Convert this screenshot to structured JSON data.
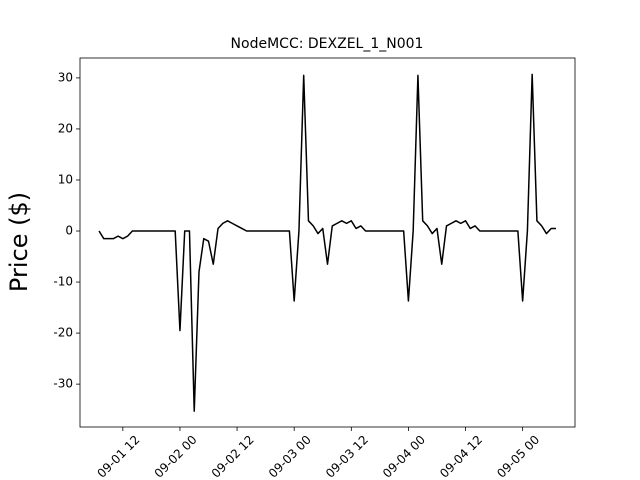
{
  "chart_data": {
    "type": "line",
    "title": "NodeMCC: DEXZEL_1_N001",
    "y_label": "Price ($)",
    "color": "#000000",
    "x": [
      "09-01 07",
      "09-01 08",
      "09-01 09",
      "09-01 10",
      "09-01 11",
      "09-01 12",
      "09-01 13",
      "09-01 14",
      "09-01 15",
      "09-01 16",
      "09-01 17",
      "09-01 18",
      "09-01 19",
      "09-01 20",
      "09-01 21",
      "09-01 22",
      "09-01 23",
      "09-02 00",
      "09-02 01",
      "09-02 02",
      "09-02 03",
      "09-02 04",
      "09-02 05",
      "09-02 06",
      "09-02 07",
      "09-02 08",
      "09-02 09",
      "09-02 10",
      "09-02 11",
      "09-02 12",
      "09-02 13",
      "09-02 14",
      "09-02 15",
      "09-02 16",
      "09-02 17",
      "09-02 18",
      "09-02 19",
      "09-02 20",
      "09-02 21",
      "09-02 22",
      "09-02 23",
      "09-03 00",
      "09-03 01",
      "09-03 02",
      "09-03 03",
      "09-03 04",
      "09-03 05",
      "09-03 06",
      "09-03 07",
      "09-03 08",
      "09-03 09",
      "09-03 10",
      "09-03 11",
      "09-03 12",
      "09-03 13",
      "09-03 14",
      "09-03 15",
      "09-03 16",
      "09-03 17",
      "09-03 18",
      "09-03 19",
      "09-03 20",
      "09-03 21",
      "09-03 22",
      "09-03 23",
      "09-04 00",
      "09-04 01",
      "09-04 02",
      "09-04 03",
      "09-04 04",
      "09-04 05",
      "09-04 06",
      "09-04 07",
      "09-04 08",
      "09-04 09",
      "09-04 10",
      "09-04 11",
      "09-04 12",
      "09-04 13",
      "09-04 14",
      "09-04 15",
      "09-04 16",
      "09-04 17",
      "09-04 18",
      "09-04 19",
      "09-04 20",
      "09-04 21",
      "09-04 22",
      "09-04 23",
      "09-05 00",
      "09-05 01",
      "09-05 02",
      "09-05 03",
      "09-05 04",
      "09-05 05",
      "09-05 06",
      "09-05 07"
    ],
    "values": [
      0,
      -1.5,
      -1.5,
      -1.5,
      -1,
      -1.5,
      -1,
      0,
      0,
      0,
      0,
      0,
      0,
      0,
      0,
      0,
      0,
      -19.5,
      0,
      0,
      -35.3,
      -8,
      -1.5,
      -2,
      -6.5,
      0.5,
      1.5,
      2,
      1.5,
      1,
      0.5,
      0,
      0,
      0,
      0,
      0,
      0,
      0,
      0,
      0,
      0,
      -13.7,
      0,
      30.5,
      2,
      1,
      -0.5,
      0.5,
      -6.5,
      1,
      1.5,
      2,
      1.5,
      2,
      0.5,
      1,
      0,
      0,
      0,
      0,
      0,
      0,
      0,
      0,
      0,
      -13.7,
      0,
      30.5,
      2,
      1,
      -0.5,
      0.5,
      -6.5,
      1,
      1.5,
      2,
      1.5,
      2,
      0.5,
      1,
      0,
      0,
      0,
      0,
      0,
      0,
      0,
      0,
      0,
      -13.7,
      0,
      30.7,
      2,
      1,
      -0.5,
      0.5,
      0.5
    ],
    "xlim": [
      "09-01 03",
      "09-05 11"
    ],
    "xticks": [
      "09-01 12",
      "09-02 00",
      "09-02 12",
      "09-03 00",
      "09-03 12",
      "09-04 00",
      "09-04 12",
      "09-05 00"
    ],
    "ylim": [
      -38.4,
      33.9
    ],
    "yticks": [
      -30,
      -20,
      -10,
      0,
      10,
      20,
      30
    ]
  }
}
